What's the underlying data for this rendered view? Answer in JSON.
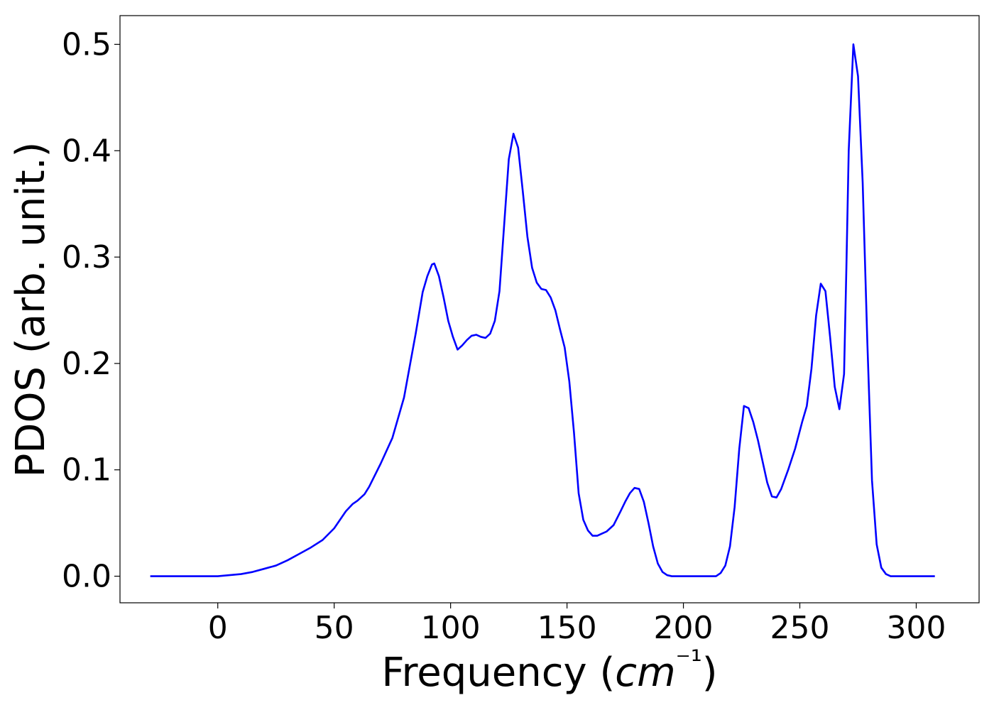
{
  "chart_data": {
    "type": "line",
    "title": "",
    "xlabel": "Frequency (cm⁻¹)",
    "ylabel": "PDOS (arb. unit.)",
    "xlim": [
      -42,
      327
    ],
    "ylim": [
      -0.025,
      0.527
    ],
    "xticks": [
      0,
      50,
      100,
      150,
      200,
      250,
      300
    ],
    "yticks": [
      0.0,
      0.1,
      0.2,
      0.3,
      0.4,
      0.5
    ],
    "xtick_labels": [
      "0",
      "50",
      "100",
      "150",
      "200",
      "250",
      "300"
    ],
    "ytick_labels": [
      "0.0",
      "0.1",
      "0.2",
      "0.3",
      "0.4",
      "0.5"
    ],
    "grid": false,
    "series": [
      {
        "color": "#0000ff",
        "x": [
          -29,
          -20,
          -10,
          0,
          5,
          10,
          15,
          20,
          25,
          30,
          35,
          40,
          45,
          50,
          55,
          58,
          60,
          63,
          65,
          70,
          75,
          80,
          85,
          88,
          90,
          92,
          93,
          95,
          97,
          99,
          101,
          103,
          105,
          107,
          109,
          111,
          113,
          115,
          117,
          119,
          121,
          123,
          125,
          127,
          129,
          131,
          133,
          135,
          137,
          139,
          141,
          143,
          145,
          147,
          149,
          151,
          153,
          155,
          157,
          159,
          161,
          163,
          165,
          167,
          170,
          173,
          175,
          177,
          179,
          181,
          183,
          185,
          187,
          189,
          191,
          193,
          195,
          200,
          205,
          210,
          214,
          216,
          218,
          220,
          222,
          224,
          226,
          228,
          230,
          232,
          234,
          236,
          238,
          240,
          242,
          245,
          248,
          251,
          253,
          255,
          257,
          259,
          261,
          263,
          265,
          267,
          269,
          270,
          271,
          273,
          275,
          277,
          279,
          281,
          283,
          285,
          287,
          289,
          295,
          300,
          308
        ],
        "y": [
          0.0,
          0.0,
          0.0,
          0.0,
          0.001,
          0.002,
          0.004,
          0.007,
          0.01,
          0.015,
          0.021,
          0.027,
          0.034,
          0.045,
          0.061,
          0.068,
          0.071,
          0.077,
          0.084,
          0.106,
          0.13,
          0.168,
          0.228,
          0.267,
          0.282,
          0.293,
          0.294,
          0.282,
          0.262,
          0.24,
          0.225,
          0.213,
          0.217,
          0.222,
          0.226,
          0.227,
          0.225,
          0.224,
          0.228,
          0.24,
          0.268,
          0.33,
          0.392,
          0.416,
          0.403,
          0.362,
          0.319,
          0.29,
          0.276,
          0.27,
          0.269,
          0.262,
          0.25,
          0.232,
          0.215,
          0.183,
          0.135,
          0.078,
          0.053,
          0.043,
          0.038,
          0.038,
          0.04,
          0.042,
          0.048,
          0.061,
          0.07,
          0.078,
          0.083,
          0.082,
          0.07,
          0.05,
          0.028,
          0.012,
          0.004,
          0.001,
          0.0,
          0.0,
          0.0,
          0.0,
          0.0,
          0.003,
          0.01,
          0.028,
          0.065,
          0.12,
          0.16,
          0.158,
          0.145,
          0.128,
          0.108,
          0.088,
          0.075,
          0.074,
          0.082,
          0.1,
          0.12,
          0.145,
          0.16,
          0.195,
          0.245,
          0.275,
          0.268,
          0.225,
          0.178,
          0.157,
          0.19,
          0.29,
          0.4,
          0.5,
          0.47,
          0.37,
          0.22,
          0.09,
          0.03,
          0.008,
          0.002,
          0.0,
          0.0,
          0.0,
          0.0
        ]
      }
    ]
  }
}
